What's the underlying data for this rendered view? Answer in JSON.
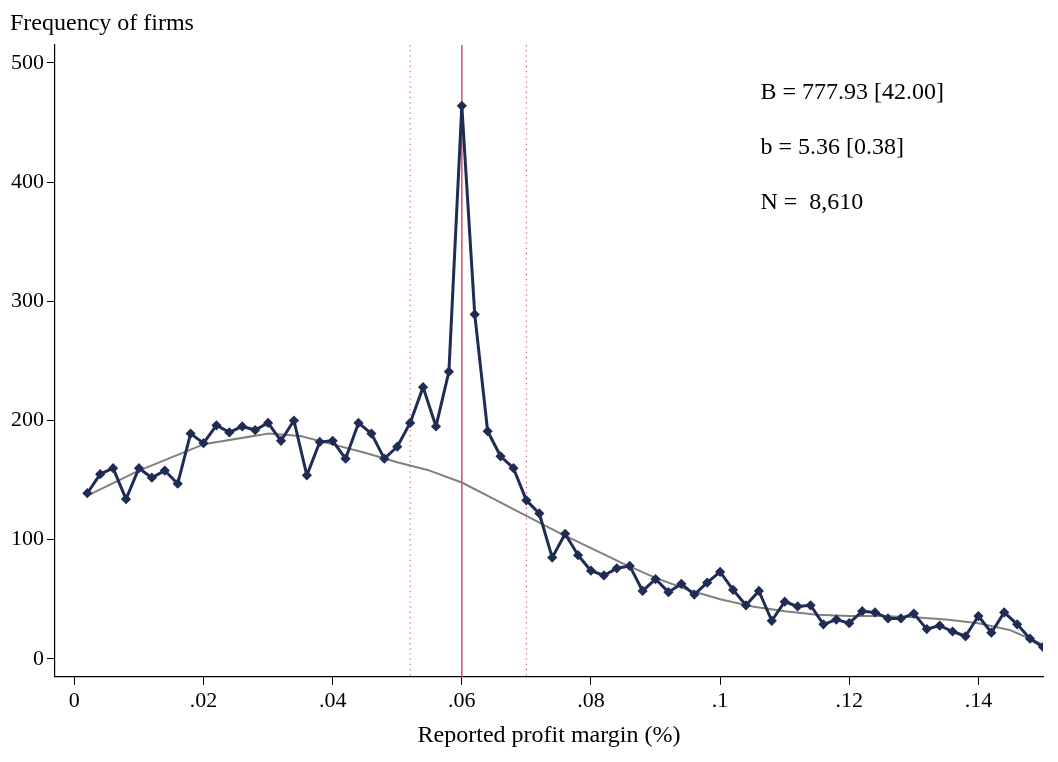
{
  "chart_data": {
    "type": "line",
    "xlabel": "Reported profit margin (%)",
    "ylabel": "Frequency of firms",
    "xlim": [
      -0.003,
      0.15
    ],
    "ylim": [
      -15,
      515
    ],
    "xticks": [
      0,
      {
        "value": 0.02,
        "label": ".02"
      },
      {
        "value": 0.04,
        "label": ".04"
      },
      {
        "value": 0.06,
        "label": ".06"
      },
      {
        "value": 0.08,
        "label": ".08"
      },
      {
        "value": 0.1,
        "label": ".1"
      },
      {
        "value": 0.12,
        "label": ".12"
      },
      {
        "value": 0.14,
        "label": ".14"
      }
    ],
    "yticks": [
      0,
      100,
      200,
      300,
      400,
      500
    ],
    "grid": false,
    "legend": false,
    "series": [
      {
        "type": "line",
        "color": "#1f2d55",
        "marker": "diamond",
        "line_style": "solid",
        "x": [
          0.002,
          0.004,
          0.006,
          0.008,
          0.01,
          0.012,
          0.014,
          0.016,
          0.018,
          0.02,
          0.022,
          0.024,
          0.026,
          0.028,
          0.03,
          0.032,
          0.034,
          0.036,
          0.038,
          0.04,
          0.042,
          0.044,
          0.046,
          0.048,
          0.05,
          0.052,
          0.054,
          0.056,
          0.058,
          0.06,
          0.062,
          0.064,
          0.066,
          0.068,
          0.07,
          0.072,
          0.074,
          0.076,
          0.078,
          0.08,
          0.082,
          0.084,
          0.086,
          0.088,
          0.09,
          0.092,
          0.094,
          0.096,
          0.098,
          0.1,
          0.102,
          0.104,
          0.106,
          0.108,
          0.11,
          0.112,
          0.114,
          0.116,
          0.118,
          0.12,
          0.122,
          0.124,
          0.126,
          0.128,
          0.13,
          0.132,
          0.134,
          0.136,
          0.138,
          0.14,
          0.142,
          0.144,
          0.146,
          0.148,
          0.15
        ],
        "values": [
          139,
          155,
          160,
          134,
          160,
          152,
          158,
          147,
          189,
          181,
          196,
          190,
          195,
          192,
          198,
          183,
          200,
          154,
          182,
          183,
          168,
          198,
          189,
          168,
          178,
          198,
          228,
          195,
          241,
          464,
          289,
          191,
          170,
          160,
          133,
          122,
          85,
          105,
          87,
          74,
          70,
          76,
          78,
          57,
          67,
          56,
          63,
          54,
          64,
          73,
          58,
          45,
          57,
          32,
          48,
          44,
          45,
          29,
          33,
          30,
          40,
          39,
          34,
          34,
          38,
          25,
          28,
          23,
          19,
          36,
          22,
          39,
          29,
          17,
          10
        ]
      },
      {
        "type": "line",
        "color": "#808080",
        "marker": "none",
        "line_style": "solid",
        "x": [
          0.002,
          0.01,
          0.02,
          0.03,
          0.035,
          0.04,
          0.045,
          0.05,
          0.055,
          0.06,
          0.065,
          0.07,
          0.075,
          0.08,
          0.085,
          0.09,
          0.095,
          0.1,
          0.105,
          0.11,
          0.115,
          0.12,
          0.125,
          0.13,
          0.135,
          0.14,
          0.145,
          0.15
        ],
        "values": [
          137,
          158,
          180,
          189,
          187,
          180,
          173,
          165,
          158,
          148,
          134,
          120,
          106,
          93,
          80,
          68,
          58,
          50,
          44,
          40,
          37,
          36,
          36,
          35,
          33,
          30,
          24,
          12
        ]
      }
    ],
    "ref_lines": [
      {
        "axis": "x",
        "value": 0.052,
        "color": "#d6587a",
        "line_style": "dotted"
      },
      {
        "axis": "x",
        "value": 0.06,
        "color": "#d6587a",
        "line_style": "solid"
      },
      {
        "axis": "x",
        "value": 0.07,
        "color": "#d6587a",
        "line_style": "dotted"
      }
    ],
    "annotations": [
      "B = 777.93 [42.00]",
      "b = 5.36 [0.38]",
      "N =  8,610"
    ]
  }
}
